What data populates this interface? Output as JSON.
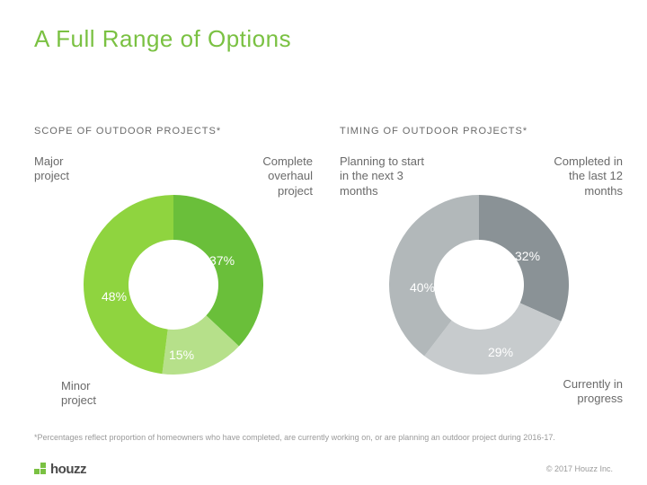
{
  "title": "A Full Range of Options",
  "title_color": "#7ac142",
  "title_fontsize": 26,
  "charts": {
    "scope": {
      "type": "donut",
      "subtitle": "SCOPE OF OUTDOOR PROJECTS*",
      "inner_radius": 50,
      "outer_radius": 100,
      "start_angle_deg": 0,
      "background_color": "#ffffff",
      "segments": [
        {
          "label": "Complete\noverhaul\nproject",
          "value": 37,
          "pct_text": "37%",
          "color": "#6abf3a"
        },
        {
          "label": "Minor\nproject",
          "value": 15,
          "pct_text": "15%",
          "color": "#b6e08a"
        },
        {
          "label": "Major\nproject",
          "value": 48,
          "pct_text": "48%",
          "color": "#8fd43f"
        }
      ]
    },
    "timing": {
      "type": "donut",
      "subtitle": "TIMING OF OUTDOOR PROJECTS*",
      "inner_radius": 50,
      "outer_radius": 100,
      "start_angle_deg": 0,
      "background_color": "#ffffff",
      "segments": [
        {
          "label": "Completed in\nthe last 12\nmonths",
          "value": 32,
          "pct_text": "32%",
          "color": "#8a9296"
        },
        {
          "label": "Currently in\nprogress",
          "value": 29,
          "pct_text": "29%",
          "color": "#c7cbcd"
        },
        {
          "label": "Planning to start\nin the next 3\nmonths",
          "value": 40,
          "pct_text": "40%",
          "color": "#b2b8ba"
        }
      ]
    }
  },
  "label_color": "#6a6a6a",
  "label_fontsize": 13,
  "pct_color": "#ffffff",
  "pct_fontsize": 14,
  "subtitle_color": "#6a6a6a",
  "subtitle_fontsize": 11,
  "footnote": "*Percentages reflect proportion of homeowners who have completed, are currently working on, or are planning an outdoor project during 2016-17.",
  "logo": {
    "text": "houzz",
    "mark_color": "#7ac142"
  },
  "copyright": "© 2017 Houzz Inc."
}
